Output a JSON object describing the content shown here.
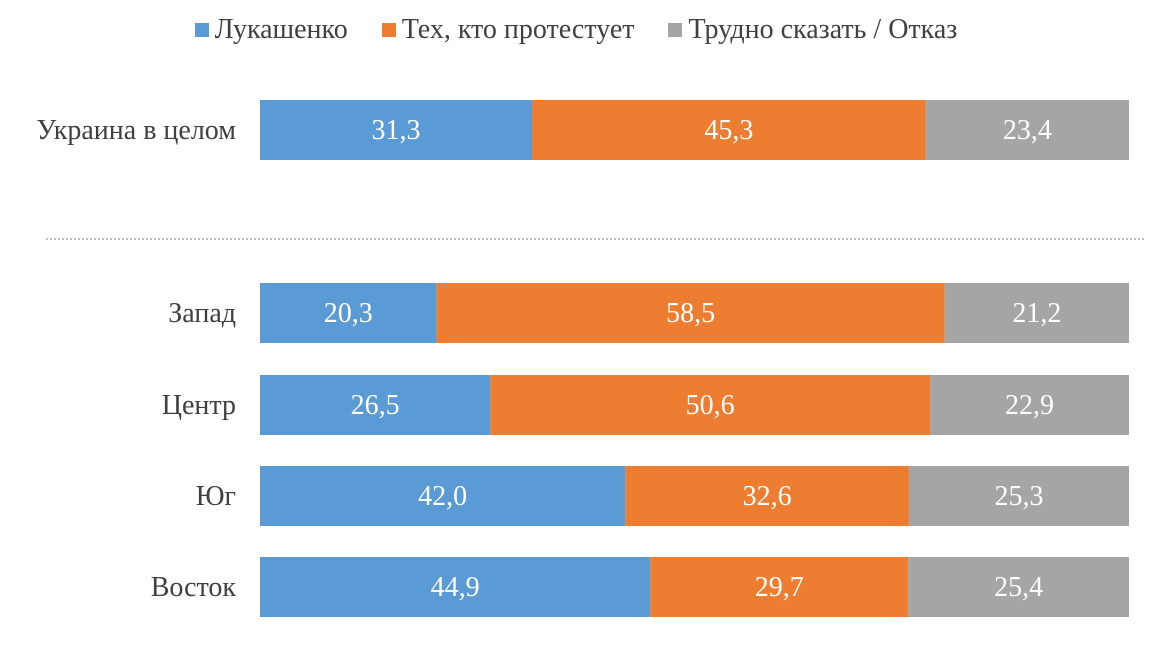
{
  "chart_data": {
    "type": "bar",
    "orientation": "horizontal",
    "stacked": true,
    "percent_stacked": true,
    "legend_position": "top",
    "grid": false,
    "categories": [
      "Украина в целом",
      "Запад",
      "Центр",
      "Юг",
      "Восток"
    ],
    "series": [
      {
        "name": "Лукашенко",
        "color": "#5B9BD5",
        "values": [
          31.3,
          20.3,
          26.5,
          42.0,
          44.9
        ],
        "labels": [
          "31,3",
          "20,3",
          "26,5",
          "42,0",
          "44,9"
        ]
      },
      {
        "name": "Тех, кто протестует",
        "color": "#ED7D31",
        "values": [
          45.3,
          58.5,
          50.6,
          32.6,
          29.7
        ],
        "labels": [
          "45,3",
          "58,5",
          "50,6",
          "32,6",
          "29,7"
        ]
      },
      {
        "name": "Трудно сказать / Отказ",
        "color": "#A5A5A5",
        "values": [
          23.4,
          21.2,
          22.9,
          25.3,
          25.4
        ],
        "labels": [
          "23,4",
          "21,2",
          "22,9",
          "25,3",
          "25,4"
        ]
      }
    ],
    "separator_after_category": 0
  }
}
